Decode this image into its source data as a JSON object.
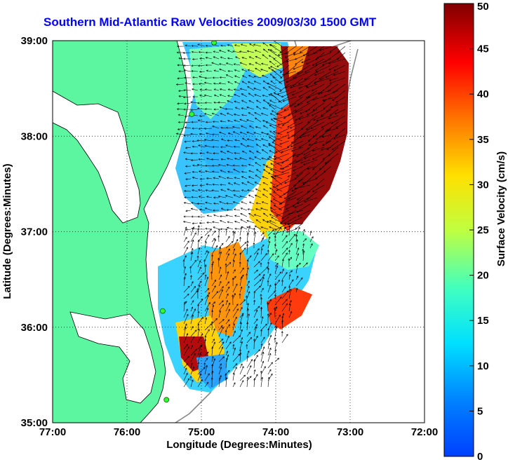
{
  "title": "Southern Mid-Atlantic Raw Velocities 2009/03/30 1500 GMT",
  "map": {
    "xlabel": "Longitude (Degrees:Minutes)",
    "ylabel": "Latitude (Degrees:Minutes)",
    "x_ticks": [
      "77:00",
      "76:00",
      "75:00",
      "74:00",
      "73:00",
      "72:00"
    ],
    "y_ticks": [
      "35:00",
      "36:00",
      "37:00",
      "38:00",
      "39:00"
    ],
    "lon_range": [
      -77,
      -72
    ],
    "lat_range": [
      35,
      39
    ],
    "land_color": "#5cf5a0",
    "grid": "dotted"
  },
  "colorbar": {
    "label": "Surface Velocity (cm/s)",
    "ticks": [
      "0",
      "5",
      "10",
      "15",
      "20",
      "25",
      "30",
      "35",
      "40",
      "45",
      "50"
    ],
    "range": [
      0,
      50
    ],
    "colormap": "jet"
  },
  "stations": [
    {
      "lon": -74.83,
      "lat": 38.98
    },
    {
      "lon": -75.13,
      "lat": 38.23
    },
    {
      "lon": -75.52,
      "lat": 36.17
    },
    {
      "lon": -75.47,
      "lat": 35.24
    }
  ]
}
